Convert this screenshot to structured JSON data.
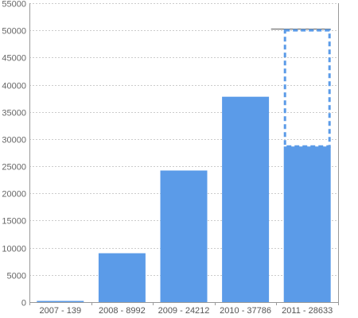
{
  "chart_data": {
    "type": "bar",
    "categories": [
      "2007 - 139",
      "2008 - 8992",
      "2009 - 24212",
      "2010 - 37786",
      "2011 - 28633"
    ],
    "values": [
      139,
      8992,
      24212,
      37786,
      28633
    ],
    "projected": [
      {
        "category": "2011 - 28633",
        "value": 50000
      }
    ],
    "ylim": [
      0,
      55000
    ],
    "yticks": [
      0,
      5000,
      10000,
      15000,
      20000,
      25000,
      30000,
      35000,
      40000,
      45000,
      50000,
      55000
    ],
    "grid": true,
    "colors": {
      "bar": "#5b9be8",
      "projection_outline": "#5b9be8",
      "grid": "#cccccc",
      "axis": "#999999"
    }
  }
}
